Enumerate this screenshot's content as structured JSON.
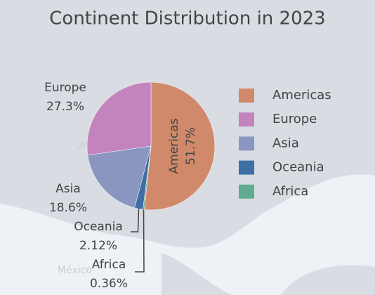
{
  "chart_data": {
    "type": "pie",
    "title": "Continent Distribution in 2023",
    "categories": [
      "Americas",
      "Europe",
      "Asia",
      "Oceania",
      "Africa"
    ],
    "values": [
      51.7,
      27.3,
      18.6,
      2.12,
      0.36
    ],
    "value_labels": [
      "51.7%",
      "27.3%",
      "18.6%",
      "2.12%",
      "0.36%"
    ],
    "colors": [
      "#d08a6b",
      "#c383bd",
      "#8b96c0",
      "#3d6fa6",
      "#62ab93"
    ],
    "legend": "right",
    "map_labels": [
      "United States",
      "México"
    ]
  }
}
